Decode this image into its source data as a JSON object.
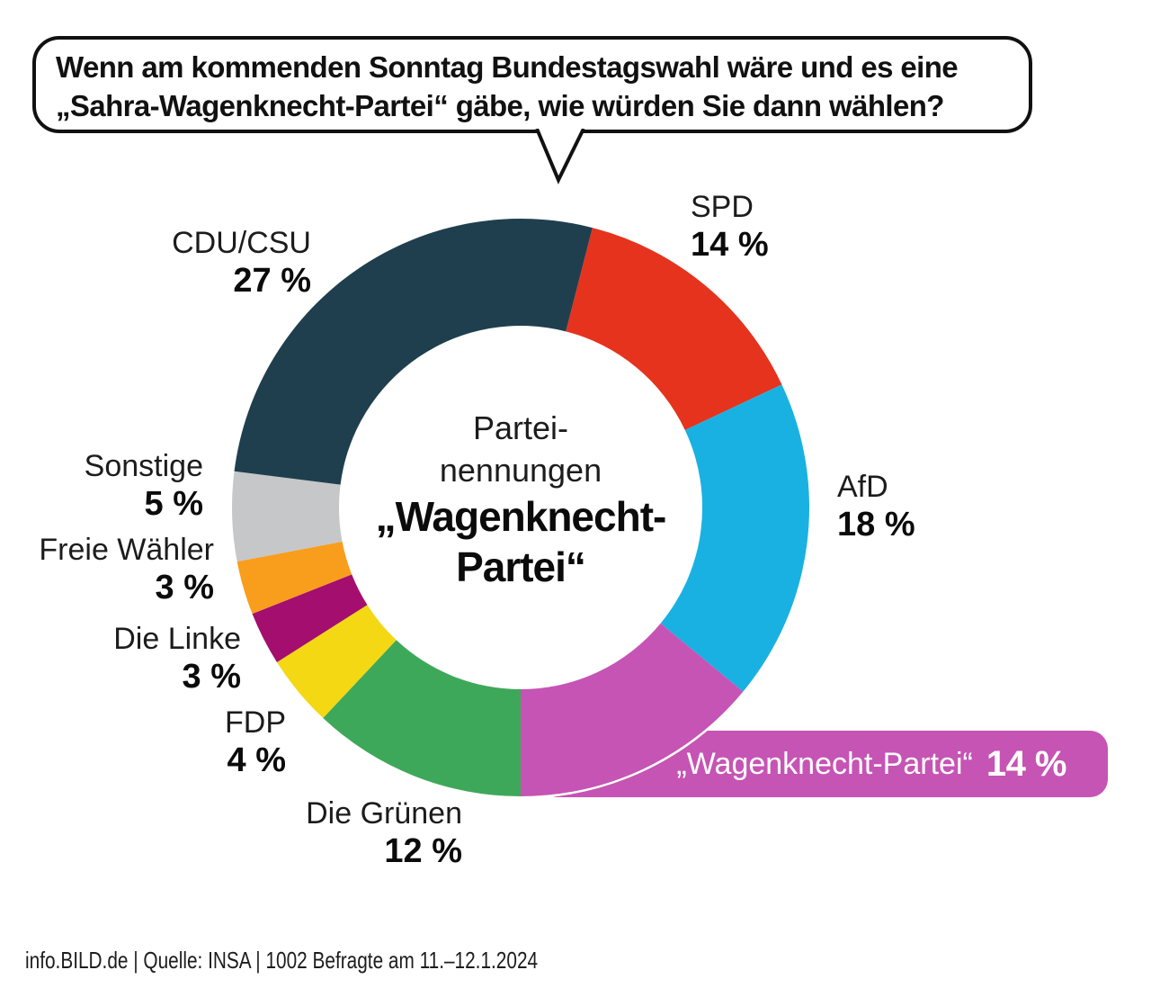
{
  "question": {
    "line1": "Wenn am kommenden Sonntag Bundestagswahl wäre und es eine",
    "line2": "„Sahra-Wagenknecht-Partei“ gäbe, wie würden Sie dann wählen?"
  },
  "chart_data": {
    "type": "pie",
    "donut": true,
    "start_angle_deg": 14.4,
    "legend_position": "around",
    "center_label": {
      "line1": "Partei-",
      "line2": "nennungen",
      "bold_line1": "„Wagenknecht-",
      "bold_line2": "Partei“"
    },
    "segments": [
      {
        "id": "spd",
        "label": "SPD",
        "value": 14,
        "value_label": "14 %",
        "color": "#e5331e"
      },
      {
        "id": "afd",
        "label": "AfD",
        "value": 18,
        "value_label": "18 %",
        "color": "#19b1e2"
      },
      {
        "id": "wagenknecht-partei",
        "label": "„Wagenknecht-Partei“",
        "value": 14,
        "value_label": "14 %",
        "color": "#c654b4"
      },
      {
        "id": "die-gruenen",
        "label": "Die Grünen",
        "value": 12,
        "value_label": "12 %",
        "color": "#3ea85a"
      },
      {
        "id": "fdp",
        "label": "FDP",
        "value": 4,
        "value_label": "4 %",
        "color": "#f3d813"
      },
      {
        "id": "die-linke",
        "label": "Die Linke",
        "value": 3,
        "value_label": "3 %",
        "color": "#a40e6f"
      },
      {
        "id": "freie-waehler",
        "label": "Freie Wähler",
        "value": 3,
        "value_label": "3 %",
        "color": "#f99d1c"
      },
      {
        "id": "sonstige",
        "label": "Sonstige",
        "value": 5,
        "value_label": "5 %",
        "color": "#c6c7c8"
      },
      {
        "id": "cdu-csu",
        "label": "CDU/CSU",
        "value": 27,
        "value_label": "27 %",
        "color": "#1f3f4e"
      }
    ]
  },
  "highlight_banner": {
    "label": "„Wagenknecht-Partei“",
    "value_label": "14 %",
    "color": "#c654b4"
  },
  "footer": {
    "text": "info.BILD.de | Quelle: INSA | 1002 Befragte am 11.–12.1.2024"
  }
}
